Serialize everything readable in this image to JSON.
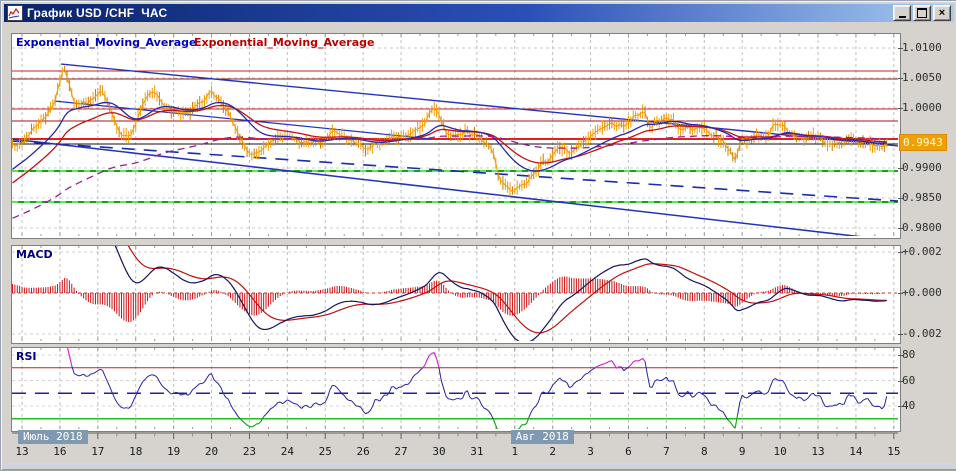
{
  "window": {
    "title": "График USD /CHF  ЧАС"
  },
  "titlebar_buttons": {
    "minimize": "minimize",
    "maximize": "maximize",
    "close": "close"
  },
  "legend": {
    "ema_fast_label": "Exponential_Moving_Average",
    "ema_slow_label": "Exponential_Moving_Average"
  },
  "macd": {
    "label": "MACD"
  },
  "rsi": {
    "label": "RSI"
  },
  "chart_data": [
    {
      "type": "candlestick",
      "panel": "price",
      "symbol": "USD/CHF",
      "timeframe": "hourly",
      "xlim": [
        -0.264,
        23.11
      ],
      "ylim": [
        0.97867,
        1.01233
      ],
      "x_ticks": [
        "13",
        "16",
        "17",
        "18",
        "19",
        "20",
        "23",
        "24",
        "25",
        "26",
        "27",
        "30",
        "31",
        "1",
        "2",
        "3",
        "6",
        "7",
        "8",
        "9",
        "10",
        "13",
        "14",
        "15"
      ],
      "month_labels": [
        {
          "text": "Июль 2018",
          "tick_index": 0
        },
        {
          "text": "Авг 2018",
          "tick_index": 13
        }
      ],
      "y_axis": [
        {
          "value": 1.01,
          "label": "1.0100"
        },
        {
          "value": 1.005,
          "label": "1.0050"
        },
        {
          "value": 1.0,
          "label": "1.0000"
        },
        {
          "value": 0.99,
          "label": "0.9900"
        },
        {
          "value": 0.985,
          "label": "0.9850"
        },
        {
          "value": 0.98,
          "label": "0.9800"
        }
      ],
      "current_price": 0.9943,
      "current_price_label": "0.9943",
      "samples_per_day": 16,
      "noise": 0.00085,
      "bar_range": [
        0.0004,
        0.0013
      ],
      "price_anchors": [
        [
          -0.25,
          0.9937
        ],
        [
          0,
          0.9942
        ],
        [
          0.3,
          0.9965
        ],
        [
          0.6,
          0.9985
        ],
        [
          0.85,
          1.001
        ],
        [
          1.0,
          1.004
        ],
        [
          1.1,
          1.0073
        ],
        [
          1.2,
          1.0045
        ],
        [
          1.35,
          1.001
        ],
        [
          1.55,
          1.0013
        ],
        [
          1.75,
          1.0008
        ],
        [
          1.95,
          1.0018
        ],
        [
          2.1,
          1.0022
        ],
        [
          2.35,
          1.0
        ],
        [
          2.6,
          0.9958
        ],
        [
          2.8,
          0.9948
        ],
        [
          3.0,
          0.9972
        ],
        [
          3.2,
          1.0008
        ],
        [
          3.45,
          1.0028
        ],
        [
          3.7,
          1.0013
        ],
        [
          3.9,
          0.9998
        ],
        [
          4.2,
          0.9986
        ],
        [
          4.5,
          0.9998
        ],
        [
          4.75,
          1.0012
        ],
        [
          5.0,
          1.003
        ],
        [
          5.2,
          1.0012
        ],
        [
          5.45,
          0.999
        ],
        [
          5.7,
          0.9955
        ],
        [
          5.95,
          0.993
        ],
        [
          6.15,
          0.992
        ],
        [
          6.4,
          0.9938
        ],
        [
          6.7,
          0.9952
        ],
        [
          7.0,
          0.995
        ],
        [
          7.3,
          0.9944
        ],
        [
          7.6,
          0.9936
        ],
        [
          7.9,
          0.9946
        ],
        [
          8.2,
          0.9955
        ],
        [
          8.5,
          0.9952
        ],
        [
          8.8,
          0.9944
        ],
        [
          9.1,
          0.9935
        ],
        [
          9.4,
          0.994
        ],
        [
          9.7,
          0.995
        ],
        [
          10.0,
          0.9953
        ],
        [
          10.3,
          0.996
        ],
        [
          10.6,
          0.9968
        ],
        [
          10.85,
          1.0003
        ],
        [
          11.0,
          0.999
        ],
        [
          11.2,
          0.9953
        ],
        [
          11.5,
          0.9952
        ],
        [
          11.75,
          0.996
        ],
        [
          12.0,
          0.9955
        ],
        [
          12.2,
          0.9945
        ],
        [
          12.4,
          0.993
        ],
        [
          12.55,
          0.9895
        ],
        [
          12.75,
          0.9871
        ],
        [
          13.0,
          0.9866
        ],
        [
          13.25,
          0.9874
        ],
        [
          13.5,
          0.9888
        ],
        [
          13.75,
          0.9908
        ],
        [
          14.0,
          0.9925
        ],
        [
          14.2,
          0.9935
        ],
        [
          14.45,
          0.9928
        ],
        [
          14.7,
          0.9942
        ],
        [
          15.0,
          0.9955
        ],
        [
          15.3,
          0.9963
        ],
        [
          15.6,
          0.9972
        ],
        [
          15.9,
          0.997
        ],
        [
          16.15,
          0.9988
        ],
        [
          16.4,
          0.9992
        ],
        [
          16.6,
          0.997
        ],
        [
          16.8,
          0.998
        ],
        [
          17.0,
          0.9988
        ],
        [
          17.25,
          0.9975
        ],
        [
          17.5,
          0.9962
        ],
        [
          17.75,
          0.997
        ],
        [
          18.0,
          0.9962
        ],
        [
          18.3,
          0.995
        ],
        [
          18.6,
          0.9938
        ],
        [
          18.8,
          0.9915
        ],
        [
          19.0,
          0.9945
        ],
        [
          19.3,
          0.9955
        ],
        [
          19.6,
          0.9948
        ],
        [
          19.85,
          0.9968
        ],
        [
          20.05,
          0.9977
        ],
        [
          20.3,
          0.9952
        ],
        [
          20.6,
          0.9945
        ],
        [
          20.9,
          0.9952
        ],
        [
          21.2,
          0.9945
        ],
        [
          21.5,
          0.9937
        ],
        [
          21.8,
          0.9948
        ],
        [
          22.1,
          0.994
        ],
        [
          22.4,
          0.9936
        ],
        [
          22.65,
          0.994
        ],
        [
          22.85,
          0.9943
        ]
      ],
      "ema_periods": {
        "fast": 24,
        "slow": 40,
        "trend": 140
      },
      "hlines": [
        {
          "price": 1.00617,
          "color": "#d42020",
          "width": 1
        },
        {
          "price": 1.00483,
          "color": "#a01515",
          "width": 1
        },
        {
          "price": 0.99983,
          "color": "#d42020",
          "width": 1
        },
        {
          "price": 0.99783,
          "color": "#a01515",
          "width": 1
        },
        {
          "price": 0.99483,
          "color": "#e02020",
          "width": 2
        },
        {
          "price": 0.994,
          "color": "#101010",
          "width": 1
        },
        {
          "price": 0.9895,
          "color": "#18a018",
          "width": 2,
          "overlay": "#58e858"
        },
        {
          "price": 0.98433,
          "color": "#18a018",
          "width": 2,
          "overlay": "#58e858"
        }
      ],
      "trendlines": [
        {
          "from": [
            1.03,
            1.00733
          ],
          "to": [
            23.11,
            0.99367
          ],
          "color": "#2233bb",
          "width": 1.4
        },
        {
          "from": [
            0.85,
            1.00117
          ],
          "to": [
            10.8,
            0.99483
          ],
          "color": "#2233bb",
          "width": 1.2
        },
        {
          "from": [
            -0.264,
            0.99483
          ],
          "to": [
            23.11,
            0.97783
          ],
          "color": "#2233bb",
          "width": 1.6
        },
        {
          "from": [
            -0.264,
            0.9945
          ],
          "to": [
            23.11,
            0.9845
          ],
          "color": "#1a2bb0",
          "width": 1.6,
          "dash": "13 9"
        }
      ],
      "colors": {
        "candle": "#f09c00",
        "candle_dark": "#c87a00",
        "ema_fast": "#2828a8",
        "ema_slow": "#c01212",
        "ema_trend": "#952095",
        "grid": "#bfbfbf",
        "hgrid": "#cccccc"
      }
    },
    {
      "type": "line+histogram",
      "panel": "macd",
      "label": "MACD",
      "ylim": [
        -0.00234,
        0.00229
      ],
      "y_ticks": [
        {
          "value": 0.002,
          "label": "+0.002"
        },
        {
          "value": 0.0,
          "label": "+0.000"
        },
        {
          "value": -0.002,
          "label": "-0.002"
        }
      ],
      "params": {
        "fast": 22,
        "slow": 48,
        "signal": 16
      },
      "colors": {
        "line": "#14145e",
        "signal": "#c01010",
        "hist": "#cc1111",
        "zero": "#cc3333"
      }
    },
    {
      "type": "line",
      "panel": "rsi",
      "label": "RSI",
      "period": 22,
      "ylim": [
        22,
        85.5
      ],
      "y_ticks": [
        {
          "value": 80,
          "label": "80"
        },
        {
          "value": 60,
          "label": "60"
        },
        {
          "value": 40,
          "label": "40"
        }
      ],
      "levels": {
        "overbought": 70,
        "mid": 50,
        "oversold": 30
      },
      "colors": {
        "line": "#2424a0",
        "over_seg": "#d428d4",
        "under_seg": "#15aa15",
        "overbought_line": "#c22222",
        "oversold_line": "#22bb22",
        "mid_line": "#2020a0"
      }
    }
  ]
}
